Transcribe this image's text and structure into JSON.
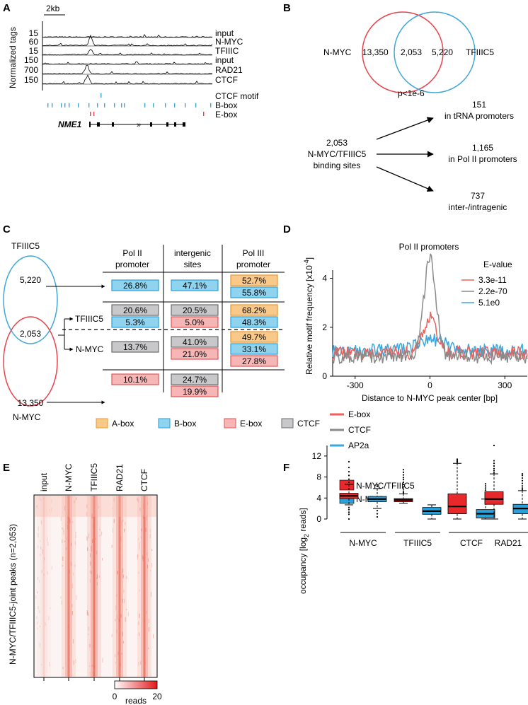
{
  "panels": {
    "a": {
      "letter": "A",
      "scale": "2kb",
      "ylabel": "Normalized tags",
      "tracks": [
        {
          "scale": "15",
          "label": "input"
        },
        {
          "scale": "60",
          "label": "N-MYC"
        },
        {
          "scale": "15",
          "label": "TFIIIC"
        },
        {
          "scale": "150",
          "label": "input"
        },
        {
          "scale": "700",
          "label": "RAD21"
        },
        {
          "scale": "150",
          "label": "CTCF"
        }
      ],
      "motif_labels": [
        "CTCF motif",
        "B-box",
        "E-box"
      ],
      "gene": "NME1"
    },
    "b": {
      "letter": "B",
      "left_label": "N-MYC",
      "right_label": "TFIIIC5",
      "left_only": "13,350",
      "overlap": "2,053",
      "right_only": "5,220",
      "pvalue": "p<1e-6",
      "source_count": "2,053",
      "source_line1": "N-MYC/TFIIIC5",
      "source_line2": "binding sites",
      "targets": [
        {
          "count": "151",
          "label": "in tRNA promoters"
        },
        {
          "count": "1,165",
          "label": "in Pol II promoters"
        },
        {
          "count": "737",
          "label": "inter-/intragenic"
        }
      ]
    },
    "c": {
      "letter": "C",
      "col_headers": [
        [
          "Pol II",
          "promoter"
        ],
        [
          "intergenic",
          "sites"
        ],
        [
          "Pol III",
          "promoter"
        ]
      ],
      "tfiiic5_label": "TFIIIC5",
      "nmyc_label": "N-MYC",
      "tfiiic5_count": "5,220",
      "overlap_count": "2,053",
      "nmyc_count": "13,350",
      "arrow_tfiiic5": "TFIIIC5",
      "arrow_nmyc": "N-MYC",
      "rows": [
        {
          "pol2": [
            {
              "v": "26.8%",
              "c": "b"
            }
          ],
          "inter": [
            {
              "v": "47.1%",
              "c": "b"
            }
          ],
          "pol3": [
            {
              "v": "52.7%",
              "c": "a"
            },
            {
              "v": "55.8%",
              "c": "b"
            }
          ]
        },
        {
          "pol2": [
            {
              "v": "20.6%",
              "c": "g"
            },
            {
              "v": "5.3%",
              "c": "b"
            }
          ],
          "inter": [
            {
              "v": "20.5%",
              "c": "g"
            },
            {
              "v": "5.0%",
              "c": "e"
            }
          ],
          "pol3": [
            {
              "v": "68.2%",
              "c": "a"
            },
            {
              "v": "48.3%",
              "c": "b"
            }
          ]
        },
        {
          "pol2": [
            {
              "v": "13.7%",
              "c": "g"
            }
          ],
          "inter": [
            {
              "v": "41.0%",
              "c": "g"
            },
            {
              "v": "21.0%",
              "c": "e"
            }
          ],
          "pol3": [
            {
              "v": "49.7%",
              "c": "a"
            },
            {
              "v": "33.1%",
              "c": "b"
            },
            {
              "v": "27.8%",
              "c": "e"
            }
          ]
        },
        {
          "pol2": [
            {
              "v": "10.1%",
              "c": "e"
            }
          ],
          "inter": [
            {
              "v": "24.7%",
              "c": "g"
            },
            {
              "v": "19.9%",
              "c": "e"
            }
          ],
          "pol3": []
        }
      ],
      "legend": [
        {
          "label": "A-box",
          "c": "a"
        },
        {
          "label": "B-box",
          "c": "b"
        },
        {
          "label": "E-box",
          "c": "e"
        },
        {
          "label": "CTCF",
          "c": "g"
        }
      ]
    },
    "e": {
      "letter": "E",
      "ylabel": "N-MYC/TFIIIC5-joint peaks (n=2,053)",
      "columns": [
        "input",
        "N-MYC",
        "TFIIIC5",
        "RAD21",
        "CTCF"
      ],
      "colorbar_min": "0",
      "colorbar_max": "20",
      "colorbar_label": "reads"
    }
  },
  "colors": {
    "a_box_fill": "#f9c98a",
    "a_box_stroke": "#e9962b",
    "b_box_fill": "#8fd3ef",
    "b_box_stroke": "#2a9fd6",
    "e_box_fill": "#f7b6b6",
    "e_box_stroke": "#e05555",
    "g_box_fill": "#c8c8ca",
    "g_box_stroke": "#6b6b6b",
    "venn_red": "#e8434a",
    "venn_blue": "#3fa8d8",
    "red": "#e8282b",
    "blue": "#2aa0d8",
    "gray": "#8a8a8a",
    "line_red": "#f0605a",
    "line_blue": "#3ba7dc"
  },
  "chart_data": [
    {
      "id": "D",
      "letter": "D",
      "type": "line",
      "title": "Pol II promoters",
      "xlabel": "Distance to N-MYC peak center [bp]",
      "ylabel": "Relative motif frequency [x10",
      "ylabel_exp": "-4",
      "ylabel_end": "]",
      "xlim": [
        -390,
        390
      ],
      "ylim": [
        0,
        5.2
      ],
      "xticks": [
        -300,
        0,
        300
      ],
      "yticks": [
        0,
        2,
        4
      ],
      "legend_title": "E-value",
      "series": [
        {
          "name": "E-box",
          "evalue": "3.3e-11",
          "color": "#f0605a",
          "baseline": 0.95,
          "peak": 2.4,
          "width": 26
        },
        {
          "name": "CTCF",
          "evalue": "2.2e-70",
          "color": "#8a8a8a",
          "baseline": 0.8,
          "peak": 4.8,
          "width": 24
        },
        {
          "name": "AP2a",
          "evalue": "5.1e0",
          "color": "#3ba7dc",
          "baseline": 1.05,
          "peak": 1.5,
          "width": 60
        }
      ],
      "bottom_legend": [
        "E-box",
        "CTCF",
        "AP2a"
      ]
    },
    {
      "id": "F",
      "letter": "F",
      "type": "box",
      "ylabel": "occupancy [log",
      "ylabel_sub": "2",
      "ylabel_end": " reads]",
      "ylim": [
        0,
        14
      ],
      "yticks": [
        0,
        4,
        8,
        12
      ],
      "legend": [
        {
          "name": "N-MYC/TFIIIC5",
          "color": "#e8282b"
        },
        {
          "name": "N-MYC",
          "color": "#2aa0d8"
        }
      ],
      "groups": [
        {
          "name": "N-MYC",
          "boxes": [
            {
              "series": "N-MYC/TFIIIC5",
              "min": 2.7,
              "q1": 3.9,
              "median": 4.4,
              "q3": 4.9,
              "max": 6.6,
              "outliers": [
                0,
                0.9,
                1.3,
                1.8,
                2.2,
                7.0,
                7.6,
                8.3,
                9.0,
                9.8,
                10.9
              ]
            },
            {
              "series": "N-MYC",
              "min": 2.0,
              "q1": 3.3,
              "median": 3.8,
              "q3": 4.3,
              "max": 5.8,
              "outliers": [
                0.4,
                1.0,
                1.6,
                6.2,
                6.5
              ]
            }
          ]
        },
        {
          "name": "TFIIIC5",
          "boxes": [
            {
              "series": "N-MYC/TFIIIC5",
              "min": 3.0,
              "q1": 3.3,
              "median": 3.6,
              "q3": 3.9,
              "max": 4.8,
              "outliers": [
                5.0,
                5.3,
                5.7,
                6.1,
                6.6,
                7.0,
                7.5,
                7.9,
                8.4,
                8.9,
                9.4
              ]
            },
            {
              "series": "N-MYC",
              "min": 0.0,
              "q1": 0.9,
              "median": 1.5,
              "q3": 2.2,
              "max": 2.7,
              "outliers": []
            }
          ]
        },
        {
          "name": "CTCF",
          "boxes": [
            {
              "series": "N-MYC/TFIIIC5",
              "min": 0.0,
              "q1": 1.0,
              "median": 2.4,
              "q3": 4.8,
              "max": 10.6,
              "outliers": [
                10.8,
                11.0,
                11.2,
                11.4
              ]
            },
            {
              "series": "N-MYC",
              "min": 0.0,
              "q1": 0.2,
              "median": 1.0,
              "q3": 1.8,
              "max": 3.8,
              "outliers": [
                4.0,
                4.3,
                4.7,
                5.1,
                5.5,
                5.9,
                6.3,
                6.7
              ]
            }
          ]
        },
        {
          "name": "RAD21",
          "boxes": [
            {
              "series": "N-MYC/TFIIIC5",
              "min": 0.0,
              "q1": 2.8,
              "median": 3.8,
              "q3": 5.2,
              "max": 8.6,
              "outliers": [
                8.8,
                9.2,
                9.6,
                10.1,
                10.6,
                11.1,
                14.0
              ]
            },
            {
              "series": "N-MYC",
              "min": 0.0,
              "q1": 1.0,
              "median": 2.0,
              "q3": 2.8,
              "max": 5.4,
              "outliers": [
                5.6,
                5.9,
                6.3,
                6.8,
                7.3,
                7.8,
                8.3,
                8.6
              ]
            }
          ]
        }
      ]
    }
  ]
}
